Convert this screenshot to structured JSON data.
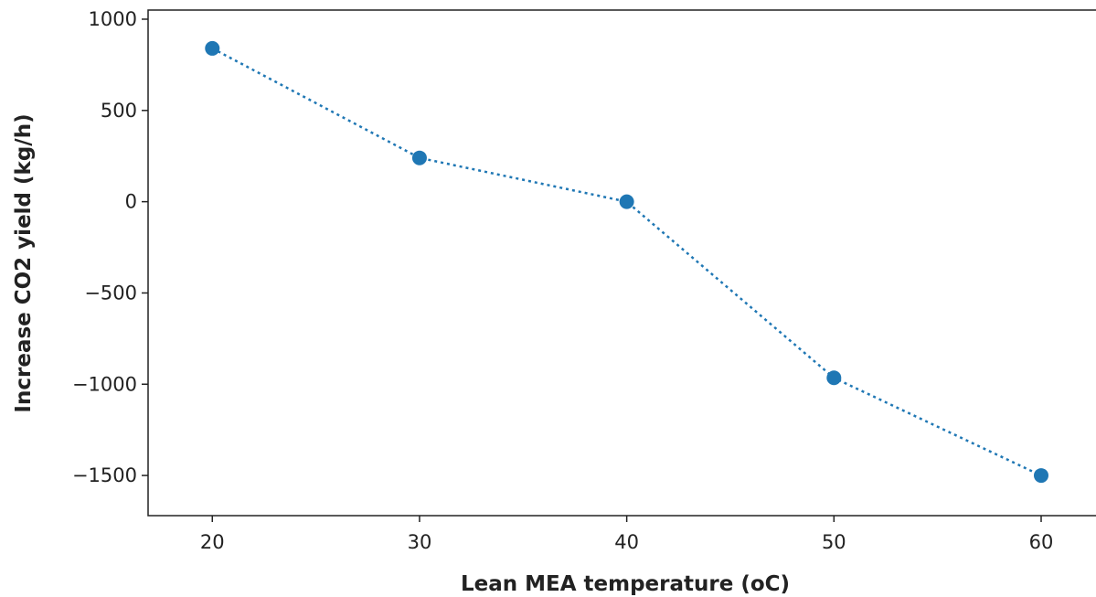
{
  "chart_data": {
    "type": "line",
    "title": "",
    "xlabel": "Lean MEA temperature (oC)",
    "ylabel": "Increase CO2 yield (kg/h)",
    "x": [
      20,
      30,
      40,
      50,
      60
    ],
    "series": [
      {
        "values": [
          840,
          240,
          0,
          -965,
          -1500
        ]
      }
    ],
    "xlim": [
      16.9,
      63
    ],
    "ylim": [
      -1720,
      1050
    ],
    "xticks": [
      20,
      30,
      40,
      50,
      60
    ],
    "yticks": [
      1000,
      500,
      0,
      -500,
      -1000,
      -1500
    ],
    "xtick_labels": [
      "20",
      "30",
      "40",
      "50",
      "60"
    ],
    "ytick_labels": [
      "1000",
      "500",
      "0",
      "−500",
      "−1000",
      "−1500"
    ],
    "line_style": "dotted",
    "markers": true,
    "grid": false,
    "color": "#1f77b4"
  }
}
